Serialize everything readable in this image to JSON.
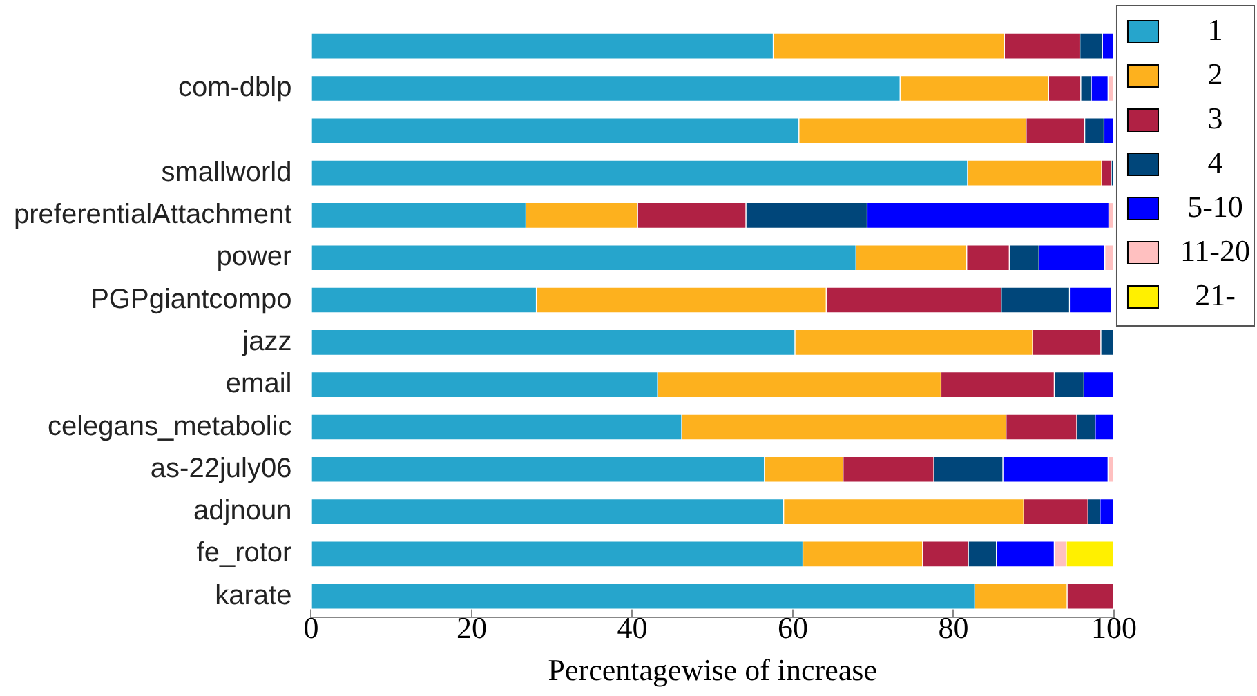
{
  "chart_data": {
    "type": "bar",
    "orientation": "horizontal",
    "stacked": true,
    "xlabel": "Percentagewise of increase",
    "legend": "top right",
    "grid": false,
    "categories": [
      null,
      "com-dblp",
      null,
      "smallworld",
      "preferentialAttachment",
      "power",
      "PGPgiantcompo",
      "jazz",
      "email",
      "celegans_metabolic",
      "as-22july06",
      "adjnoun",
      "fe_rotor",
      "karate"
    ],
    "xlim": [
      0,
      100
    ],
    "xticks": [
      0,
      20,
      40,
      60,
      80,
      100
    ],
    "series": [
      {
        "name": "1",
        "color": "#26a5cc",
        "values": [
          57.6,
          73.4,
          60.8,
          81.8,
          26.8,
          67.9,
          28.1,
          60.3,
          43.2,
          46.2,
          56.5,
          58.9,
          61.3,
          82.7
        ]
      },
      {
        "name": "2",
        "color": "#fdb11e",
        "values": [
          28.8,
          18.5,
          28.3,
          16.7,
          13.9,
          13.8,
          36.1,
          29.6,
          35.3,
          40.4,
          9.8,
          29.9,
          14.9,
          11.5
        ]
      },
      {
        "name": "3",
        "color": "#b02144",
        "values": [
          9.4,
          4.0,
          7.3,
          1.2,
          13.5,
          5.3,
          21.8,
          8.5,
          14.1,
          8.8,
          11.3,
          8.0,
          5.7,
          5.8
        ]
      },
      {
        "name": "4",
        "color": "#00467a",
        "values": [
          2.8,
          1.3,
          2.4,
          0.3,
          15.1,
          3.7,
          8.5,
          1.6,
          3.7,
          2.3,
          8.6,
          1.5,
          3.5,
          0
        ]
      },
      {
        "name": "5-10",
        "color": "#0000ff",
        "values": [
          1.4,
          2.1,
          1.2,
          0,
          30.1,
          8.2,
          5.2,
          0,
          3.7,
          2.3,
          13.1,
          1.7,
          7.2,
          0
        ]
      },
      {
        "name": "11-20",
        "color": "#ffc0c0",
        "values": [
          0,
          0.7,
          0,
          0,
          0.6,
          1.1,
          null,
          0,
          0,
          0,
          0.7,
          0,
          1.5,
          0
        ]
      },
      {
        "name": "21-",
        "color": "#fff000",
        "values": [
          0,
          0,
          0,
          0,
          0,
          0,
          0,
          0,
          0,
          0,
          0,
          0,
          5.9,
          0
        ]
      }
    ]
  }
}
